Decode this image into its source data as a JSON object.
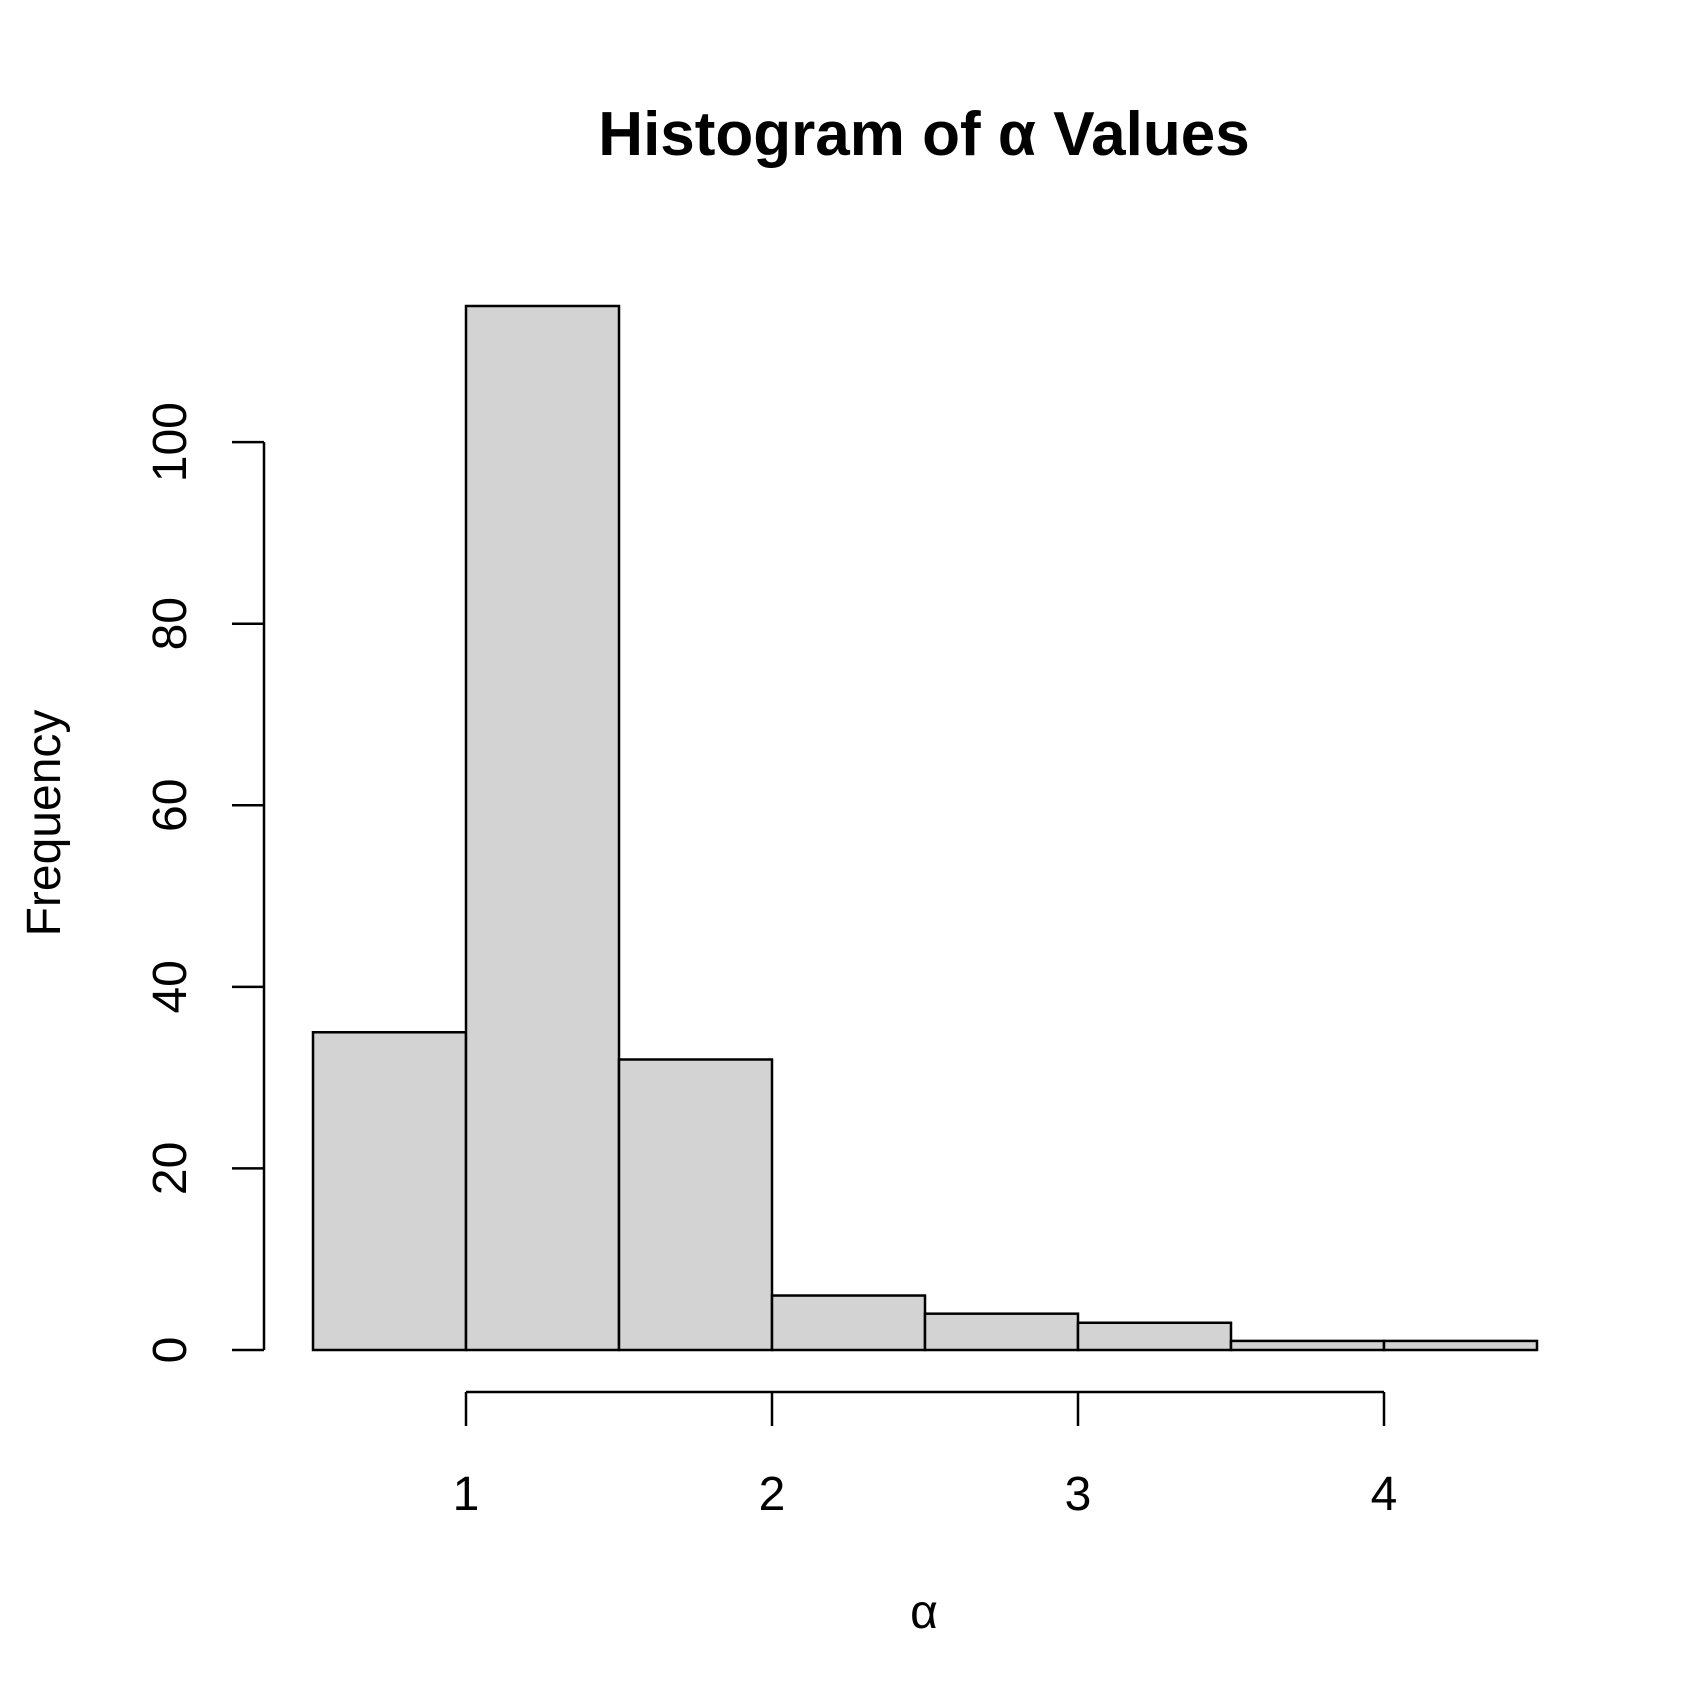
{
  "chart_data": {
    "type": "bar",
    "title": "Histogram of α Values",
    "xlabel": "α",
    "ylabel": "Frequency",
    "bin_edges": [
      0.5,
      1.0,
      1.5,
      2.0,
      2.5,
      3.0,
      3.5,
      4.0,
      4.5
    ],
    "values": [
      35,
      115,
      32,
      6,
      4,
      3,
      1,
      1
    ],
    "xlim": [
      0.5,
      4.5
    ],
    "ylim": [
      0,
      115
    ],
    "x_ticks": [
      1,
      2,
      3,
      4
    ],
    "y_ticks": [
      0,
      20,
      40,
      60,
      80,
      100
    ],
    "grid": false,
    "colors": {
      "bar_fill": "#d3d3d3",
      "bar_stroke": "#000000"
    }
  }
}
